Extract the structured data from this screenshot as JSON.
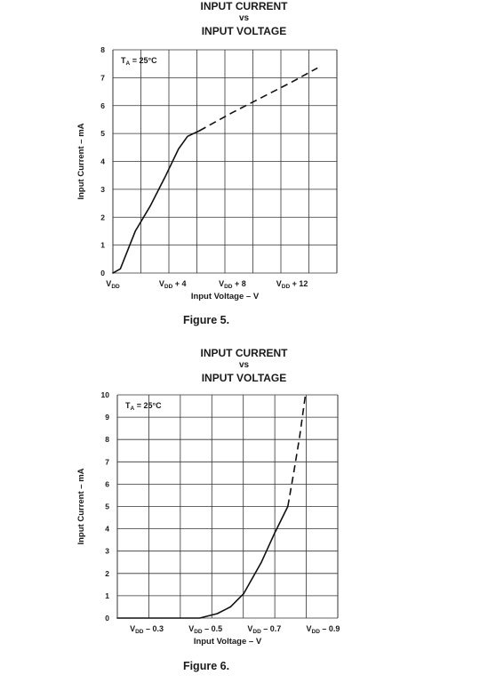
{
  "figures": [
    {
      "title_lines": [
        "INPUT CURRENT",
        "vs",
        "INPUT VOLTAGE"
      ],
      "caption": "Figure 5.",
      "annotation": "TA = 25°C",
      "annotation_sub": "A",
      "chart_data": {
        "type": "line",
        "title": "INPUT CURRENT vs INPUT VOLTAGE",
        "xlabel": "Input Voltage – V",
        "ylabel": "Input Current – mA",
        "annotation": "TA = 25°C",
        "xlim": [
          0,
          15
        ],
        "ylim": [
          0,
          8
        ],
        "x_unit": "V above VDD",
        "grid": true,
        "x_tick_labels": [
          {
            "x": 0,
            "label": "VDD"
          },
          {
            "x": 4,
            "label": "VDD + 4"
          },
          {
            "x": 8,
            "label": "VDD + 8"
          },
          {
            "x": 12,
            "label": "VDD + 12"
          }
        ],
        "y_ticks": [
          0,
          1,
          2,
          3,
          4,
          5,
          6,
          7,
          8
        ],
        "series": [
          {
            "style": "solid",
            "x": [
              0.0,
              0.5,
              0.8,
              1.5,
              2.5,
              3.5,
              4.4,
              5.0,
              5.8
            ],
            "y": [
              0.0,
              0.15,
              0.55,
              1.5,
              2.4,
              3.45,
              4.45,
              4.9,
              5.1
            ]
          },
          {
            "style": "dashed",
            "x": [
              5.8,
              8,
              10,
              12,
              13.7
            ],
            "y": [
              5.1,
              5.75,
              6.3,
              6.85,
              7.35
            ]
          }
        ]
      }
    },
    {
      "title_lines": [
        "INPUT CURRENT",
        "vs",
        "INPUT VOLTAGE"
      ],
      "caption": "Figure 6.",
      "annotation": "TA = 25°C",
      "annotation_sub": "A",
      "chart_data": {
        "type": "line",
        "title": "INPUT CURRENT vs INPUT VOLTAGE",
        "xlabel": "Input Voltage – V",
        "ylabel": "Input Current – mA",
        "annotation": "TA = 25°C",
        "xlim": [
          -0.2,
          -0.95
        ],
        "ylim": [
          0,
          10
        ],
        "x_unit": "V relative to VDD",
        "grid": true,
        "x_tick_labels": [
          {
            "x": -0.3,
            "label": "VDD – 0.3"
          },
          {
            "x": -0.5,
            "label": "VDD – 0.5"
          },
          {
            "x": -0.7,
            "label": "VDD – 0.7"
          },
          {
            "x": -0.9,
            "label": "VDD – 0.9"
          }
        ],
        "y_ticks": [
          0,
          1,
          2,
          3,
          4,
          5,
          6,
          7,
          8,
          9,
          10
        ],
        "series": [
          {
            "style": "solid",
            "x": [
              -0.2,
              -0.48,
              -0.54,
              -0.585,
              -0.63,
              -0.69,
              -0.735,
              -0.78
            ],
            "y": [
              0.0,
              0.0,
              0.2,
              0.5,
              1.1,
              2.5,
              3.8,
              5.0
            ]
          },
          {
            "style": "dashed",
            "x": [
              -0.78,
              -0.8,
              -0.82,
              -0.84
            ],
            "y": [
              5.0,
              6.5,
              8.1,
              10.0
            ]
          }
        ]
      }
    }
  ]
}
